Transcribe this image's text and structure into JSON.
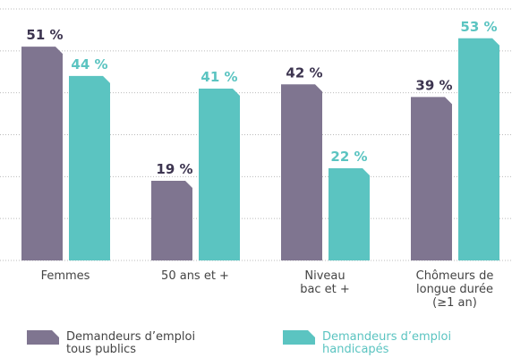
{
  "chart_data": {
    "type": "bar",
    "categories": [
      "Femmes",
      "50 ans et +",
      "Niveau\nbac et +",
      "Chômeurs de\nlongue durée\n(≥1 an)"
    ],
    "series": [
      {
        "name": "Demandeurs d’emploi\ntous publics",
        "color": "#7f7590",
        "values": [
          51,
          19,
          42,
          39
        ],
        "value_labels": [
          "51 %",
          "19 %",
          "42 %",
          "39 %"
        ]
      },
      {
        "name": "Demandeurs d’emploi\nhandicapés",
        "color": "#5bc4c1",
        "values": [
          44,
          41,
          22,
          53
        ],
        "value_labels": [
          "44 %",
          "41 %",
          "22 %",
          "53 %"
        ]
      }
    ],
    "ylim": [
      0,
      60
    ],
    "yticks": [
      0,
      10,
      20,
      30,
      40,
      50,
      60
    ],
    "grid": true
  }
}
